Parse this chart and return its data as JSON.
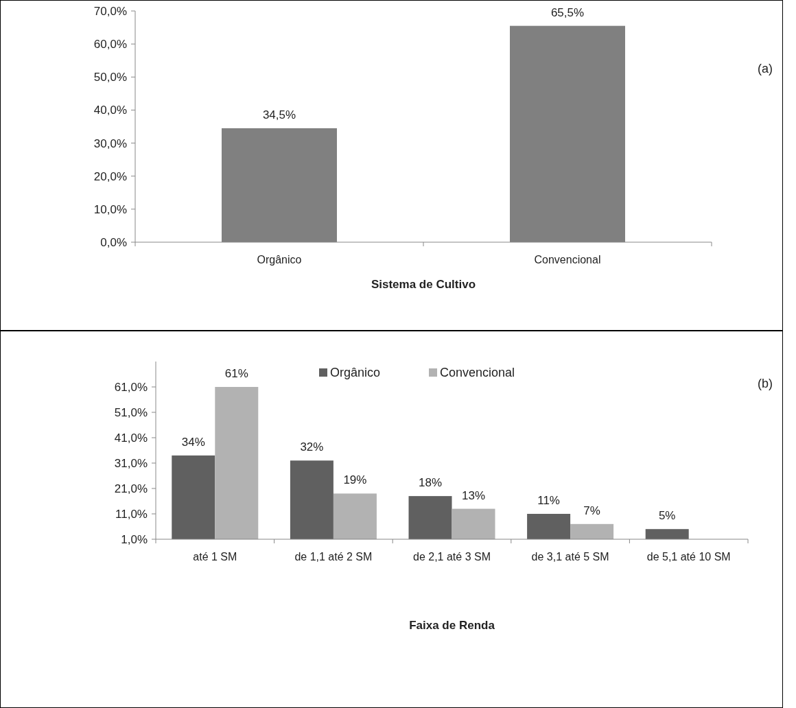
{
  "chart_data": [
    {
      "type": "bar",
      "xlabel": "Sistema de Cultivo",
      "categories": [
        "Orgânico",
        "Convencional"
      ],
      "series": [
        {
          "color": "#808080",
          "values": [
            34.5,
            65.5
          ],
          "value_labels": [
            "34,5%",
            "65,5%"
          ]
        }
      ],
      "ylim": [
        0,
        70
      ],
      "yticks": [
        {
          "value": 0,
          "label": "0,0%"
        },
        {
          "value": 10,
          "label": "10,0%"
        },
        {
          "value": 20,
          "label": "20,0%"
        },
        {
          "value": 30,
          "label": "30,0%"
        },
        {
          "value": 40,
          "label": "40,0%"
        },
        {
          "value": 50,
          "label": "50,0%"
        },
        {
          "value": 60,
          "label": "60,0%"
        },
        {
          "value": 70,
          "label": "70,0%"
        }
      ],
      "grid": false,
      "legend": false,
      "annotations": [
        "(a)"
      ]
    },
    {
      "type": "bar",
      "xlabel": "Faixa de Renda",
      "categories": [
        "até 1 SM",
        "de 1,1 até 2 SM",
        "de 2,1 até 3 SM",
        "de 3,1 até 5 SM",
        "de 5,1 até 10 SM"
      ],
      "series": [
        {
          "name": "Orgânico",
          "color": "#606060",
          "values": [
            34,
            32,
            18,
            11,
            5
          ],
          "value_labels": [
            "34%",
            "32%",
            "18%",
            "11%",
            "5%"
          ]
        },
        {
          "name": "Convencional",
          "color": "#b2b2b2",
          "values": [
            61,
            19,
            13,
            7,
            null
          ],
          "value_labels": [
            "61%",
            "19%",
            "13%",
            "7%",
            null
          ]
        }
      ],
      "ylim": [
        1,
        71
      ],
      "yticks": [
        {
          "value": 1,
          "label": "1,0%"
        },
        {
          "value": 11,
          "label": "11,0%"
        },
        {
          "value": 21,
          "label": "21,0%"
        },
        {
          "value": 31,
          "label": "31,0%"
        },
        {
          "value": 41,
          "label": "41,0%"
        },
        {
          "value": 51,
          "label": "51,0%"
        },
        {
          "value": 61,
          "label": "61,0%"
        }
      ],
      "grid": false,
      "legend": "top",
      "annotations": [
        "(b)"
      ]
    }
  ]
}
